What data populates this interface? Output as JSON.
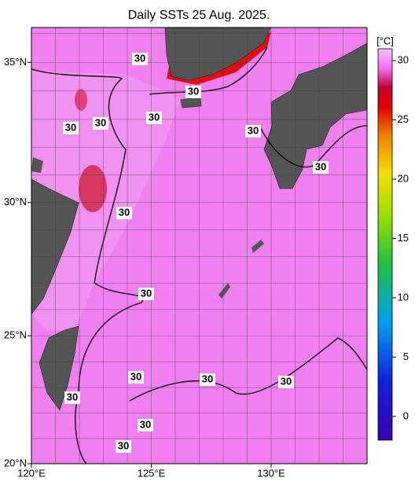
{
  "chart_data": {
    "type": "map",
    "title": "Daily SSTs 25 Aug. 2025.",
    "xlim": [
      120,
      134
    ],
    "ylim": [
      20,
      36.2
    ],
    "xticks": [
      {
        "value": 120,
        "label": "120°E"
      },
      {
        "value": 125,
        "label": "125°E"
      },
      {
        "value": 130,
        "label": "130°E"
      }
    ],
    "yticks": [
      {
        "value": 20,
        "label": "20°N"
      },
      {
        "value": 25,
        "label": "25°N"
      },
      {
        "value": 30,
        "label": "30°N"
      },
      {
        "value": 35,
        "label": "35°N"
      }
    ],
    "colorbar": {
      "label": "[°C]",
      "lim": [
        -2,
        31
      ],
      "ticks": [
        0,
        5,
        10,
        15,
        20,
        25,
        30
      ]
    },
    "contour_labels": [
      "30",
      "30",
      "30",
      "30",
      "30",
      "30",
      "30",
      "30",
      "30",
      "30",
      "30",
      "30",
      "30",
      "30",
      "30"
    ]
  }
}
